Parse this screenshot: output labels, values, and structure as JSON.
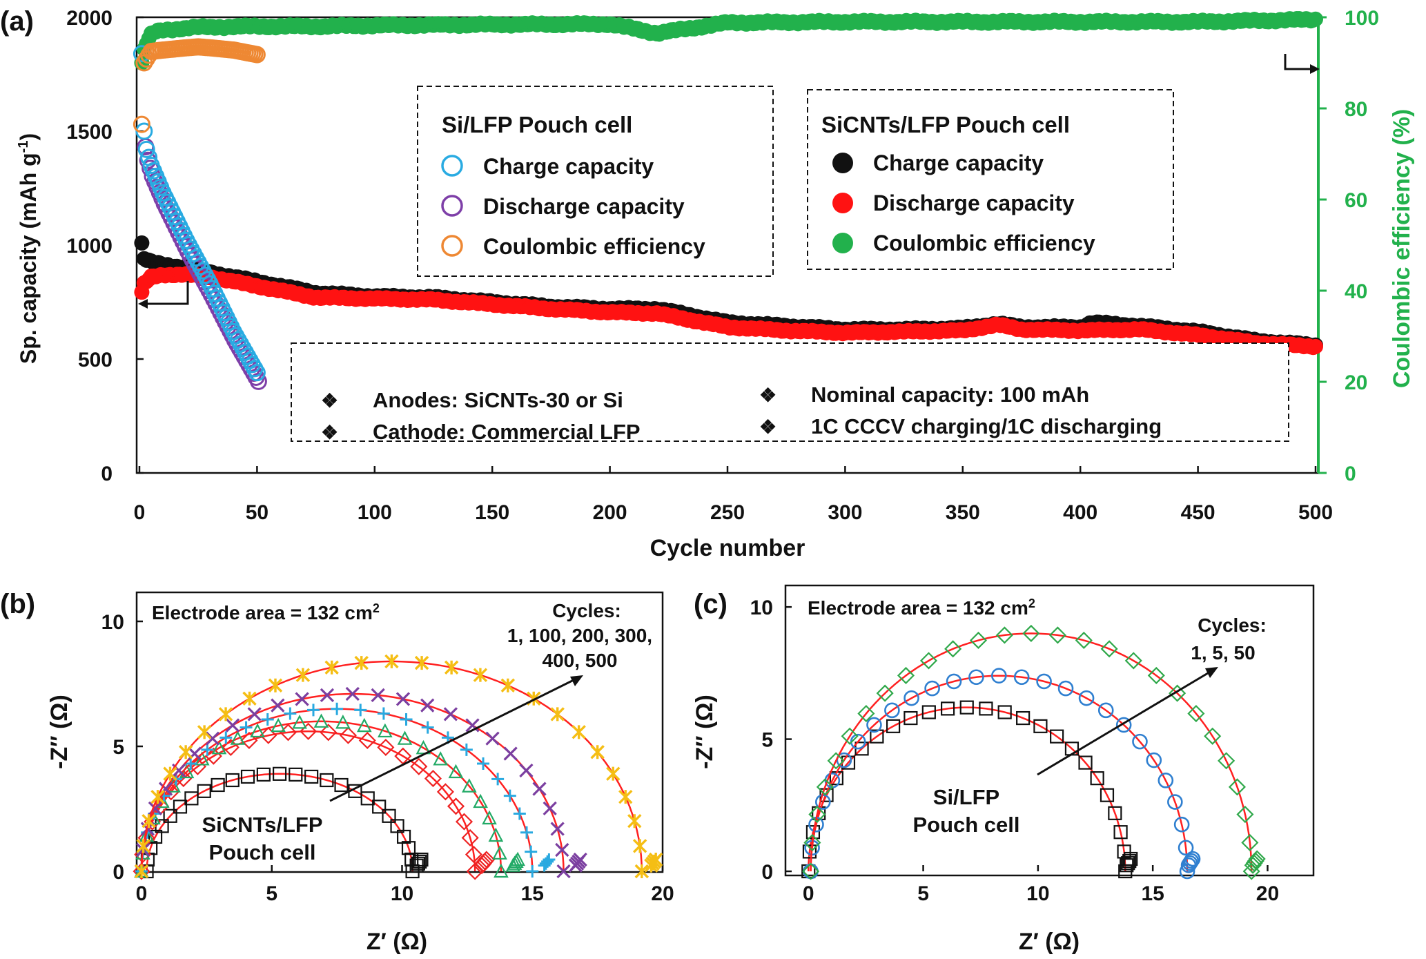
{
  "colors": {
    "black": "#111111",
    "red": "#ff1212",
    "green": "#22b14c",
    "green_axis": "#22b14c",
    "cyan": "#29abe2",
    "purple": "#7e3fa8",
    "orange": "#ee8833",
    "yellow": "#f7c21a",
    "fit_red": "#ff2020",
    "b_diamond": "#ee2222",
    "b_triangle": "#22aa66",
    "b_plus": "#29a9e0",
    "b_x": "#7b3fa0",
    "b_star": "#f5be14",
    "c_square": "#111111",
    "c_circle": "#2f7fd0",
    "c_diamond": "#2fa84a"
  },
  "chart_data": [
    {
      "panel_label": "(a)",
      "type": "scatter",
      "xlabel": "Cycle number",
      "ylabel": "Sp. capacity (mAh g",
      "ylabel_sup": "-1",
      "ylabel_end": ")",
      "y2label": "Coulombic efficiency (%)",
      "xlim": [
        0,
        500
      ],
      "ylim": [
        0,
        2000
      ],
      "y2lim": [
        0,
        100
      ],
      "xticks": [
        "0",
        "50",
        "100",
        "150",
        "200",
        "250",
        "300",
        "350",
        "400",
        "450",
        "500"
      ],
      "yticks": [
        "0",
        "500",
        "1000",
        "1500",
        "2000"
      ],
      "y2ticks": [
        "0",
        "20",
        "40",
        "60",
        "80",
        "100"
      ],
      "legend_si": {
        "title": "Si/LFP Pouch cell",
        "items": [
          "Charge capacity",
          "Discharge capacity",
          "Coulombic efficiency"
        ]
      },
      "legend_sicnt": {
        "title": "SiCNTs/LFP Pouch cell",
        "items": [
          "Charge capacity",
          "Discharge capacity",
          "Coulombic efficiency"
        ]
      },
      "info_box": [
        "Anodes: SiCNTs-30 or Si",
        "Cathode: Commercial LFP",
        "Nominal capacity: 100 mAh",
        "1C CCCV charging/1C discharging"
      ],
      "bullet_glyph": "❖",
      "series": [
        {
          "name": "SiCNTs/LFP Charge capacity",
          "axis": "left",
          "x": [
            1,
            2,
            5,
            10,
            20,
            30,
            50,
            75,
            100,
            125,
            150,
            175,
            200,
            220,
            250,
            275,
            300,
            325,
            350,
            365,
            375,
            400,
            405,
            425,
            450,
            475,
            500
          ],
          "y": [
            1005,
            940,
            925,
            915,
            900,
            880,
            840,
            790,
            775,
            770,
            750,
            730,
            720,
            720,
            660,
            645,
            630,
            630,
            635,
            655,
            640,
            640,
            660,
            645,
            620,
            580,
            560
          ]
        },
        {
          "name": "SiCNTs/LFP Discharge capacity",
          "axis": "left",
          "x": [
            1,
            2,
            5,
            10,
            20,
            30,
            50,
            75,
            100,
            125,
            150,
            175,
            200,
            220,
            250,
            275,
            300,
            325,
            350,
            365,
            375,
            400,
            425,
            450,
            475,
            500
          ],
          "y": [
            790,
            830,
            860,
            870,
            870,
            860,
            820,
            770,
            765,
            760,
            740,
            720,
            705,
            700,
            640,
            625,
            615,
            620,
            625,
            650,
            630,
            625,
            630,
            605,
            570,
            555
          ]
        },
        {
          "name": "SiCNTs/LFP Coulombic efficiency",
          "axis": "right",
          "x": [
            1,
            2,
            5,
            10,
            25,
            50,
            75,
            100,
            150,
            200,
            220,
            250,
            300,
            350,
            400,
            450,
            500
          ],
          "y": [
            90,
            93,
            96.5,
            97.2,
            97.8,
            98,
            98,
            98.2,
            98.4,
            98.5,
            96.5,
            98.8,
            99,
            99,
            99,
            99,
            99.5
          ]
        },
        {
          "name": "Si/LFP Charge capacity",
          "axis": "left",
          "x": [
            1,
            2,
            3,
            5,
            10,
            20,
            30,
            40,
            50
          ],
          "y": [
            1840,
            1500,
            1420,
            1350,
            1230,
            1020,
            830,
            620,
            440
          ]
        },
        {
          "name": "Si/LFP Discharge capacity",
          "axis": "left",
          "x": [
            2,
            3,
            5,
            10,
            20,
            30,
            40,
            50
          ],
          "y": [
            1450,
            1390,
            1320,
            1200,
            990,
            800,
            600,
            420
          ]
        },
        {
          "name": "Si/LFP Coulombic efficiency",
          "axis": "right",
          "x": [
            1,
            2,
            5,
            10,
            20,
            25,
            30,
            40,
            50
          ],
          "y": [
            76.5,
            90,
            92.5,
            92.8,
            93.3,
            93.5,
            93.3,
            92.8,
            91.8
          ]
        }
      ]
    },
    {
      "panel_label": "(b)",
      "type": "scatter",
      "xlabel": "Z′ (Ω)",
      "ylabel": "-Z′′ (Ω)",
      "xlim": [
        0,
        20
      ],
      "ylim": [
        0,
        10
      ],
      "xticks": [
        "0",
        "5",
        "10",
        "15",
        "20"
      ],
      "yticks": [
        "0",
        "5",
        "10"
      ],
      "annotation": "Electrode area = 132 cm",
      "annotation_sup": "2",
      "cycles_text": [
        "Cycles:",
        "1, 100, 200, 300,",
        "400, 500"
      ],
      "cell_label": [
        "SiCNTs/LFP",
        "Pouch cell"
      ],
      "series": [
        {
          "name": "1",
          "marker": "square",
          "center": 5.3,
          "radius": 5.1,
          "peak": 3.9,
          "end_x": 10.5
        },
        {
          "name": "100",
          "marker": "diamond",
          "center": 6.4,
          "radius": 6.4,
          "peak": 5.6,
          "end_x": 13.0
        },
        {
          "name": "200",
          "marker": "triangle",
          "center": 6.9,
          "radius": 6.9,
          "peak": 6.0,
          "end_x": 14.2
        },
        {
          "name": "300",
          "marker": "plus",
          "center": 7.5,
          "radius": 7.5,
          "peak": 6.5,
          "end_x": 15.4
        },
        {
          "name": "400",
          "marker": "x",
          "center": 8.1,
          "radius": 8.1,
          "peak": 7.1,
          "end_x": 16.6
        },
        {
          "name": "500",
          "marker": "star",
          "center": 9.6,
          "radius": 9.6,
          "peak": 8.4,
          "end_x": 19.5
        }
      ]
    },
    {
      "panel_label": "(c)",
      "type": "scatter",
      "xlabel": "Z′ (Ω)",
      "ylabel": "-Z′′ (Ω)",
      "xlim": [
        -1,
        22
      ],
      "ylim": [
        0,
        10.5
      ],
      "xticks": [
        "0",
        "5",
        "10",
        "15",
        "20"
      ],
      "yticks": [
        "0",
        "5",
        "10"
      ],
      "annotation": "Electrode area = 132 cm",
      "annotation_sup": "2",
      "cycles_text": [
        "Cycles:",
        "1, 5, 50"
      ],
      "cell_label": [
        "Si/LFP",
        "Pouch cell"
      ],
      "series": [
        {
          "name": "1",
          "marker": "square",
          "center": 6.9,
          "radius": 6.9,
          "peak": 6.2,
          "end_x": 13.8
        },
        {
          "name": "5",
          "marker": "circle",
          "center": 8.3,
          "radius": 8.2,
          "peak": 7.4,
          "end_x": 16.5
        },
        {
          "name": "50",
          "marker": "diamond",
          "center": 9.7,
          "radius": 9.6,
          "peak": 9.0,
          "end_x": 19.3
        }
      ]
    }
  ]
}
